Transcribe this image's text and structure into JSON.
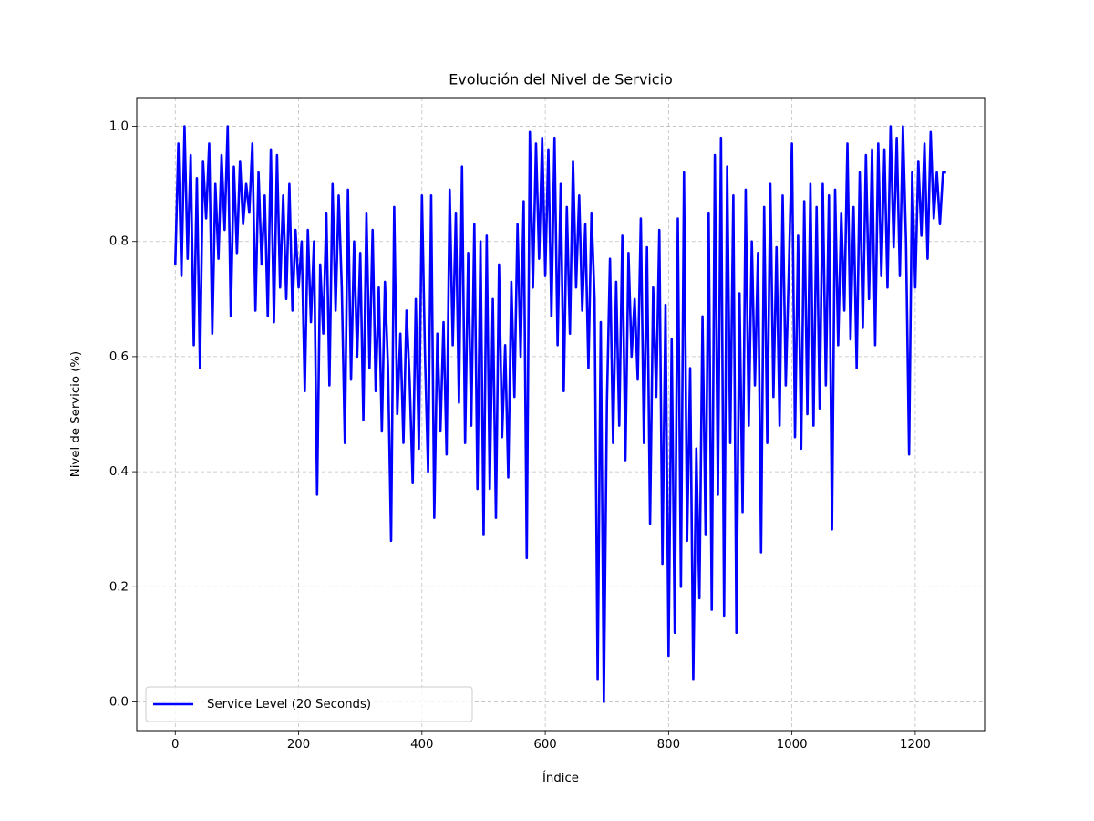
{
  "chart_data": {
    "type": "line",
    "title": "Evolución del Nivel de Servicio",
    "x_label": "Índice",
    "y_label": "Nivel de Servicio (%)",
    "x": [
      0,
      5,
      10,
      15,
      20,
      25,
      30,
      35,
      40,
      45,
      50,
      55,
      60,
      65,
      70,
      75,
      80,
      85,
      90,
      95,
      100,
      105,
      110,
      115,
      120,
      125,
      130,
      135,
      140,
      145,
      150,
      155,
      160,
      165,
      170,
      175,
      180,
      185,
      190,
      195,
      200,
      205,
      210,
      215,
      220,
      225,
      230,
      235,
      240,
      245,
      250,
      255,
      260,
      265,
      270,
      275,
      280,
      285,
      290,
      295,
      300,
      305,
      310,
      315,
      320,
      325,
      330,
      335,
      340,
      345,
      350,
      355,
      360,
      365,
      370,
      375,
      380,
      385,
      390,
      395,
      400,
      405,
      410,
      415,
      420,
      425,
      430,
      435,
      440,
      445,
      450,
      455,
      460,
      465,
      470,
      475,
      480,
      485,
      490,
      495,
      500,
      505,
      510,
      515,
      520,
      525,
      530,
      535,
      540,
      545,
      550,
      555,
      560,
      565,
      570,
      575,
      580,
      585,
      590,
      595,
      600,
      605,
      610,
      615,
      620,
      625,
      630,
      635,
      640,
      645,
      650,
      655,
      660,
      665,
      670,
      675,
      680,
      685,
      690,
      695,
      700,
      705,
      710,
      715,
      720,
      725,
      730,
      735,
      740,
      745,
      750,
      755,
      760,
      765,
      770,
      775,
      780,
      785,
      790,
      795,
      800,
      805,
      810,
      815,
      820,
      825,
      830,
      835,
      840,
      845,
      850,
      855,
      860,
      865,
      870,
      875,
      880,
      885,
      890,
      895,
      900,
      905,
      910,
      915,
      920,
      925,
      930,
      935,
      940,
      945,
      950,
      955,
      960,
      965,
      970,
      975,
      980,
      985,
      990,
      995,
      1000,
      1005,
      1010,
      1015,
      1020,
      1025,
      1030,
      1035,
      1040,
      1045,
      1050,
      1055,
      1060,
      1065,
      1070,
      1075,
      1080,
      1085,
      1090,
      1095,
      1100,
      1105,
      1110,
      1115,
      1120,
      1125,
      1130,
      1135,
      1140,
      1145,
      1150,
      1155,
      1160,
      1165,
      1170,
      1175,
      1180,
      1185,
      1190,
      1195,
      1200,
      1205,
      1210,
      1215,
      1220,
      1225,
      1230,
      1235,
      1240,
      1245,
      1250
    ],
    "series": [
      {
        "name": "Service Level (20 Seconds)",
        "color": "#0000ff",
        "values": [
          0.76,
          0.97,
          0.74,
          1.0,
          0.77,
          0.95,
          0.62,
          0.91,
          0.58,
          0.94,
          0.84,
          0.97,
          0.64,
          0.9,
          0.77,
          0.95,
          0.82,
          1.0,
          0.67,
          0.93,
          0.78,
          0.94,
          0.83,
          0.9,
          0.85,
          0.97,
          0.68,
          0.92,
          0.76,
          0.88,
          0.67,
          0.96,
          0.66,
          0.95,
          0.72,
          0.88,
          0.7,
          0.9,
          0.68,
          0.82,
          0.72,
          0.8,
          0.54,
          0.82,
          0.66,
          0.8,
          0.36,
          0.76,
          0.64,
          0.85,
          0.55,
          0.9,
          0.68,
          0.88,
          0.72,
          0.45,
          0.89,
          0.56,
          0.8,
          0.6,
          0.78,
          0.49,
          0.85,
          0.58,
          0.82,
          0.54,
          0.72,
          0.47,
          0.73,
          0.58,
          0.28,
          0.86,
          0.5,
          0.64,
          0.45,
          0.68,
          0.56,
          0.38,
          0.7,
          0.44,
          0.88,
          0.6,
          0.4,
          0.88,
          0.32,
          0.64,
          0.47,
          0.66,
          0.43,
          0.89,
          0.62,
          0.85,
          0.52,
          0.93,
          0.45,
          0.78,
          0.48,
          0.83,
          0.37,
          0.8,
          0.29,
          0.81,
          0.37,
          0.7,
          0.32,
          0.76,
          0.46,
          0.62,
          0.39,
          0.73,
          0.53,
          0.83,
          0.6,
          0.87,
          0.25,
          0.99,
          0.72,
          0.97,
          0.77,
          0.98,
          0.74,
          0.96,
          0.67,
          0.98,
          0.62,
          0.9,
          0.54,
          0.86,
          0.64,
          0.94,
          0.72,
          0.88,
          0.68,
          0.83,
          0.58,
          0.85,
          0.7,
          0.04,
          0.66,
          0.0,
          0.52,
          0.77,
          0.45,
          0.73,
          0.48,
          0.81,
          0.42,
          0.78,
          0.6,
          0.7,
          0.56,
          0.84,
          0.45,
          0.79,
          0.31,
          0.72,
          0.53,
          0.82,
          0.24,
          0.69,
          0.08,
          0.63,
          0.12,
          0.84,
          0.2,
          0.92,
          0.28,
          0.58,
          0.04,
          0.44,
          0.18,
          0.67,
          0.29,
          0.85,
          0.16,
          0.95,
          0.36,
          0.98,
          0.15,
          0.93,
          0.45,
          0.88,
          0.12,
          0.71,
          0.33,
          0.89,
          0.48,
          0.8,
          0.55,
          0.78,
          0.26,
          0.86,
          0.45,
          0.9,
          0.53,
          0.79,
          0.48,
          0.88,
          0.55,
          0.75,
          0.97,
          0.46,
          0.81,
          0.44,
          0.87,
          0.5,
          0.9,
          0.48,
          0.86,
          0.51,
          0.9,
          0.55,
          0.88,
          0.3,
          0.89,
          0.62,
          0.85,
          0.68,
          0.97,
          0.63,
          0.86,
          0.58,
          0.92,
          0.65,
          0.95,
          0.7,
          0.96,
          0.62,
          0.97,
          0.74,
          0.96,
          0.72,
          1.0,
          0.79,
          0.98,
          0.74,
          1.0,
          0.8,
          0.43,
          0.92,
          0.72,
          0.94,
          0.81,
          0.97,
          0.77,
          0.99,
          0.84,
          0.92,
          0.83,
          0.92,
          0.92
        ]
      }
    ],
    "xlim": [
      -62.5,
      1312.5
    ],
    "xticks": [
      0,
      200,
      400,
      600,
      800,
      1000,
      1200
    ],
    "ylim": [
      -0.05,
      1.05
    ],
    "yticks": [
      {
        "value": 0,
        "label": "0.0"
      },
      0.2,
      0.4,
      0.6,
      0.8,
      {
        "value": 1,
        "label": "1.0"
      }
    ],
    "grid": true,
    "legend": "lower left"
  }
}
